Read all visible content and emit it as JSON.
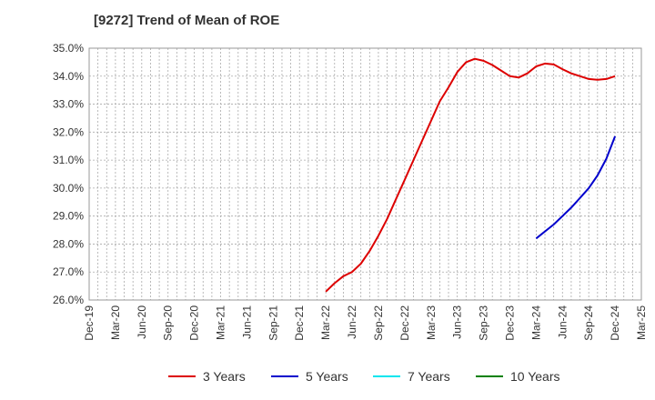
{
  "chart_data": {
    "type": "line",
    "title": "[9272]  Trend of Mean of ROE",
    "x_tick_labels": [
      "Dec-19",
      "Mar-20",
      "Jun-20",
      "Sep-20",
      "Dec-20",
      "Mar-21",
      "Jun-21",
      "Sep-21",
      "Dec-21",
      "Mar-22",
      "Jun-22",
      "Sep-22",
      "Dec-22",
      "Mar-23",
      "Jun-23",
      "Sep-23",
      "Dec-23",
      "Mar-24",
      "Jun-24",
      "Sep-24",
      "Dec-24",
      "Mar-25"
    ],
    "y_tick_labels": [
      "26.0%",
      "27.0%",
      "28.0%",
      "29.0%",
      "30.0%",
      "31.0%",
      "32.0%",
      "33.0%",
      "34.0%",
      "35.0%"
    ],
    "ylim": [
      26.0,
      35.0
    ],
    "y_unit": "%",
    "grid": true,
    "legend_position": "bottom",
    "series": [
      {
        "name": "3 Years",
        "color": "#dd0000",
        "points": [
          [
            "Mar-22",
            26.3
          ],
          [
            "Apr-22",
            26.6
          ],
          [
            "May-22",
            26.85
          ],
          [
            "Jun-22",
            27.0
          ],
          [
            "Jul-22",
            27.3
          ],
          [
            "Aug-22",
            27.75
          ],
          [
            "Sep-22",
            28.3
          ],
          [
            "Oct-22",
            28.9
          ],
          [
            "Nov-22",
            29.6
          ],
          [
            "Dec-22",
            30.3
          ],
          [
            "Jan-23",
            31.0
          ],
          [
            "Feb-23",
            31.7
          ],
          [
            "Mar-23",
            32.4
          ],
          [
            "Apr-23",
            33.1
          ],
          [
            "May-23",
            33.6
          ],
          [
            "Jun-23",
            34.15
          ],
          [
            "Jul-23",
            34.5
          ],
          [
            "Aug-23",
            34.62
          ],
          [
            "Sep-23",
            34.55
          ],
          [
            "Oct-23",
            34.4
          ],
          [
            "Nov-23",
            34.2
          ],
          [
            "Dec-23",
            34.0
          ],
          [
            "Jan-24",
            33.95
          ],
          [
            "Feb-24",
            34.1
          ],
          [
            "Mar-24",
            34.35
          ],
          [
            "Apr-24",
            34.45
          ],
          [
            "May-24",
            34.42
          ],
          [
            "Jun-24",
            34.25
          ],
          [
            "Jul-24",
            34.1
          ],
          [
            "Aug-24",
            34.0
          ],
          [
            "Sep-24",
            33.9
          ],
          [
            "Oct-24",
            33.87
          ],
          [
            "Nov-24",
            33.9
          ],
          [
            "Dec-24",
            34.0
          ]
        ]
      },
      {
        "name": "5 Years",
        "color": "#0000cc",
        "points": [
          [
            "Mar-24",
            28.2
          ],
          [
            "Apr-24",
            28.45
          ],
          [
            "May-24",
            28.7
          ],
          [
            "Jun-24",
            29.0
          ],
          [
            "Jul-24",
            29.3
          ],
          [
            "Aug-24",
            29.65
          ],
          [
            "Sep-24",
            30.0
          ],
          [
            "Oct-24",
            30.45
          ],
          [
            "Nov-24",
            31.05
          ],
          [
            "Dec-24",
            31.85
          ]
        ]
      },
      {
        "name": "7 Years",
        "color": "#00e5ee",
        "points": []
      },
      {
        "name": "10 Years",
        "color": "#008000",
        "points": []
      }
    ]
  }
}
